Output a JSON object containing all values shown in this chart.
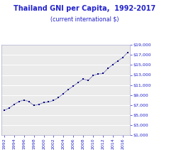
{
  "title_line1": "Thailand GNI per Capita,  1992-2017",
  "title_line2": "(current international $)",
  "title_color": "#2222cc",
  "subtitle_color": "#2222cc",
  "line_color": "#8888bb",
  "marker_color": "#000088",
  "tick_color": "#2222cc",
  "background_color": "#ffffff",
  "plot_bg_color": "#ebebeb",
  "grid_color": "#ffffff",
  "spine_color": "#aaaacc",
  "years": [
    1992,
    1993,
    1994,
    1995,
    1996,
    1997,
    1998,
    1999,
    2000,
    2001,
    2002,
    2003,
    2004,
    2005,
    2006,
    2007,
    2008,
    2009,
    2010,
    2011,
    2012,
    2013,
    2014,
    2015,
    2016,
    2017
  ],
  "values": [
    5900,
    6400,
    7100,
    7700,
    8000,
    7700,
    6900,
    7100,
    7500,
    7600,
    7900,
    8500,
    9300,
    10100,
    10800,
    11500,
    12200,
    11900,
    12900,
    13200,
    13300,
    14300,
    15100,
    15800,
    16500,
    17500
  ],
  "ylim": [
    1000,
    19000
  ],
  "yticks": [
    1000,
    3000,
    5000,
    7000,
    9000,
    11000,
    13000,
    15000,
    17000,
    19000
  ],
  "ytick_labels": [
    "$1,000",
    "$3,000",
    "$5,000",
    "$7,000",
    "$9,000",
    "$11,000",
    "$13,000",
    "$15,000",
    "$17,000",
    "$19,000"
  ],
  "xlim": [
    1991.5,
    2017.5
  ],
  "xticks": [
    1992,
    1994,
    1996,
    1998,
    2000,
    2002,
    2004,
    2006,
    2008,
    2010,
    2012,
    2014,
    2016
  ],
  "xtick_labels": [
    "1992",
    "1994",
    "1996",
    "1998",
    "2000",
    "2002",
    "2004",
    "2006",
    "2008",
    "2010",
    "2012",
    "2014",
    "2016"
  ],
  "title_fontsize": 7.0,
  "subtitle_fontsize": 5.8,
  "tick_fontsize": 4.5,
  "marker_size": 3,
  "linewidth": 0.7
}
